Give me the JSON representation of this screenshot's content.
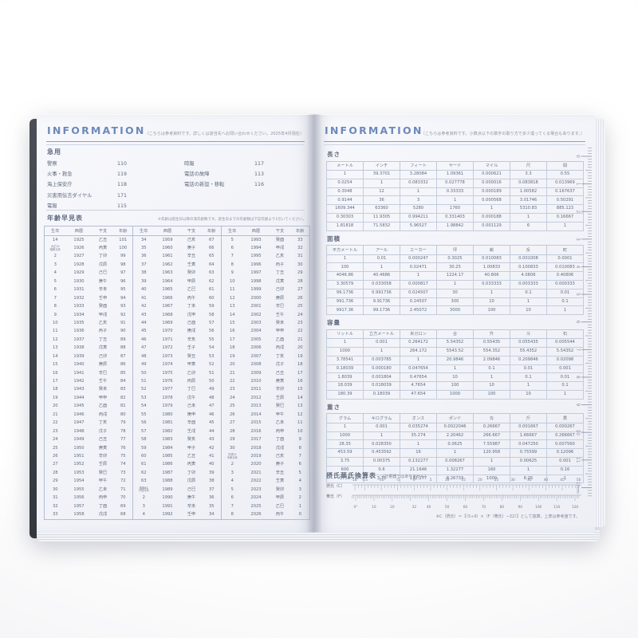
{
  "left_page": {
    "header": {
      "title": "INFORMATION",
      "note": "〔こちらは参考資料です。詳しくは該当先へお問い合わせください。2025年4月現在〕"
    },
    "emergency": {
      "title": "急用",
      "left_entries": [
        {
          "label": "警察",
          "number": "110"
        },
        {
          "label": "火事・救急",
          "number": "119"
        },
        {
          "label": "海上保安庁",
          "number": "118"
        },
        {
          "label": "災害用伝言ダイヤル",
          "number": "171"
        },
        {
          "label": "電報",
          "number": "115"
        }
      ],
      "right_entries": [
        {
          "label": "時報",
          "number": "117"
        },
        {
          "label": "電話の故障",
          "number": "113"
        },
        {
          "label": "電話の新設・移転",
          "number": "116"
        }
      ]
    },
    "age_table": {
      "title": "年齢早見表",
      "note": "※年齢は誕生日以降の満年齢数です。誕生日までの年齢数は下記年齢より1引いてください。",
      "column_headers": [
        "生年",
        "西暦",
        "干支",
        "年齢"
      ],
      "groups": [
        [
          [
            "14",
            "1925",
            "乙丑",
            "101"
          ],
          [
            "大正15\n昭和元年",
            "1926",
            "丙寅",
            "100"
          ],
          [
            "2",
            "1927",
            "丁卯",
            "99"
          ],
          [
            "3",
            "1928",
            "戊辰",
            "98"
          ],
          [
            "4",
            "1929",
            "己巳",
            "97"
          ],
          [
            "5",
            "1930",
            "庚午",
            "96"
          ],
          [
            "6",
            "1931",
            "辛未",
            "95"
          ],
          [
            "7",
            "1932",
            "壬申",
            "94"
          ],
          [
            "8",
            "1933",
            "癸酉",
            "93"
          ],
          [
            "9",
            "1934",
            "甲戌",
            "92"
          ],
          [
            "10",
            "1935",
            "乙亥",
            "91"
          ],
          [
            "11",
            "1936",
            "丙子",
            "90"
          ],
          [
            "12",
            "1937",
            "丁丑",
            "89"
          ],
          [
            "13",
            "1938",
            "戊寅",
            "88"
          ],
          [
            "14",
            "1939",
            "己卯",
            "87"
          ],
          [
            "15",
            "1940",
            "庚辰",
            "86"
          ],
          [
            "16",
            "1941",
            "辛巳",
            "85"
          ],
          [
            "17",
            "1942",
            "壬午",
            "84"
          ],
          [
            "18",
            "1943",
            "癸未",
            "83"
          ],
          [
            "19",
            "1944",
            "甲申",
            "82"
          ],
          [
            "20",
            "1945",
            "乙酉",
            "81"
          ],
          [
            "21",
            "1946",
            "丙戌",
            "80"
          ],
          [
            "22",
            "1947",
            "丁亥",
            "79"
          ],
          [
            "23",
            "1948",
            "戊子",
            "78"
          ],
          [
            "24",
            "1949",
            "己丑",
            "77"
          ],
          [
            "25",
            "1950",
            "庚寅",
            "76"
          ],
          [
            "26",
            "1951",
            "辛卯",
            "75"
          ],
          [
            "27",
            "1952",
            "壬辰",
            "74"
          ],
          [
            "28",
            "1953",
            "癸巳",
            "73"
          ],
          [
            "29",
            "1954",
            "甲午",
            "72"
          ],
          [
            "30",
            "1955",
            "乙未",
            "71"
          ],
          [
            "31",
            "1956",
            "丙申",
            "70"
          ],
          [
            "32",
            "1957",
            "丁酉",
            "69"
          ],
          [
            "33",
            "1958",
            "戊戌",
            "68"
          ]
        ],
        [
          [
            "34",
            "1959",
            "己亥",
            "67"
          ],
          [
            "35",
            "1960",
            "庚子",
            "66"
          ],
          [
            "36",
            "1961",
            "辛丑",
            "65"
          ],
          [
            "37",
            "1962",
            "壬寅",
            "64"
          ],
          [
            "38",
            "1963",
            "癸卯",
            "63"
          ],
          [
            "39",
            "1964",
            "甲辰",
            "62"
          ],
          [
            "40",
            "1965",
            "乙巳",
            "61"
          ],
          [
            "41",
            "1966",
            "丙午",
            "60"
          ],
          [
            "42",
            "1967",
            "丁未",
            "59"
          ],
          [
            "43",
            "1968",
            "戊申",
            "58"
          ],
          [
            "44",
            "1969",
            "己酉",
            "57"
          ],
          [
            "45",
            "1970",
            "庚戌",
            "56"
          ],
          [
            "46",
            "1971",
            "辛亥",
            "55"
          ],
          [
            "47",
            "1972",
            "壬子",
            "54"
          ],
          [
            "48",
            "1973",
            "癸丑",
            "53"
          ],
          [
            "49",
            "1974",
            "甲寅",
            "52"
          ],
          [
            "50",
            "1975",
            "乙卯",
            "51"
          ],
          [
            "51",
            "1976",
            "丙辰",
            "50"
          ],
          [
            "52",
            "1977",
            "丁巳",
            "49"
          ],
          [
            "53",
            "1978",
            "戊午",
            "48"
          ],
          [
            "54",
            "1979",
            "己未",
            "47"
          ],
          [
            "55",
            "1980",
            "庚申",
            "46"
          ],
          [
            "56",
            "1981",
            "辛酉",
            "45"
          ],
          [
            "57",
            "1982",
            "壬戌",
            "44"
          ],
          [
            "58",
            "1983",
            "癸亥",
            "43"
          ],
          [
            "59",
            "1984",
            "甲子",
            "42"
          ],
          [
            "60",
            "1985",
            "乙丑",
            "41"
          ],
          [
            "61",
            "1986",
            "丙寅",
            "40"
          ],
          [
            "62",
            "1987",
            "丁卯",
            "39"
          ],
          [
            "63",
            "1988",
            "戊辰",
            "38"
          ],
          [
            "昭和64\n平成元年",
            "1989",
            "己巳",
            "37"
          ],
          [
            "2",
            "1990",
            "庚午",
            "36"
          ],
          [
            "3",
            "1991",
            "辛未",
            "35"
          ],
          [
            "4",
            "1992",
            "壬申",
            "34"
          ]
        ],
        [
          [
            "5",
            "1993",
            "癸酉",
            "33"
          ],
          [
            "6",
            "1994",
            "甲戌",
            "32"
          ],
          [
            "7",
            "1995",
            "乙亥",
            "31"
          ],
          [
            "8",
            "1996",
            "丙子",
            "30"
          ],
          [
            "9",
            "1997",
            "丁丑",
            "29"
          ],
          [
            "10",
            "1998",
            "戊寅",
            "28"
          ],
          [
            "11",
            "1999",
            "己卯",
            "27"
          ],
          [
            "12",
            "2000",
            "庚辰",
            "26"
          ],
          [
            "13",
            "2001",
            "辛巳",
            "25"
          ],
          [
            "14",
            "2002",
            "壬午",
            "24"
          ],
          [
            "15",
            "2003",
            "癸未",
            "23"
          ],
          [
            "16",
            "2004",
            "甲申",
            "22"
          ],
          [
            "17",
            "2005",
            "乙酉",
            "21"
          ],
          [
            "18",
            "2006",
            "丙戌",
            "20"
          ],
          [
            "19",
            "2007",
            "丁亥",
            "19"
          ],
          [
            "20",
            "2008",
            "戊子",
            "18"
          ],
          [
            "21",
            "2009",
            "己丑",
            "17"
          ],
          [
            "22",
            "2010",
            "庚寅",
            "16"
          ],
          [
            "23",
            "2011",
            "辛卯",
            "15"
          ],
          [
            "24",
            "2012",
            "壬辰",
            "14"
          ],
          [
            "25",
            "2013",
            "癸巳",
            "13"
          ],
          [
            "26",
            "2014",
            "甲午",
            "12"
          ],
          [
            "27",
            "2015",
            "乙未",
            "11"
          ],
          [
            "28",
            "2016",
            "丙申",
            "10"
          ],
          [
            "29",
            "2017",
            "丁酉",
            "9"
          ],
          [
            "30",
            "2018",
            "戊戌",
            "8"
          ],
          [
            "平成31\n令和元年",
            "2019",
            "己亥",
            "7"
          ],
          [
            "2",
            "2020",
            "庚子",
            "6"
          ],
          [
            "3",
            "2021",
            "辛丑",
            "5"
          ],
          [
            "4",
            "2022",
            "壬寅",
            "4"
          ],
          [
            "5",
            "2023",
            "癸卯",
            "3"
          ],
          [
            "6",
            "2024",
            "甲辰",
            "2"
          ],
          [
            "7",
            "2025",
            "乙巳",
            "1"
          ],
          [
            "8",
            "2026",
            "丙午",
            "0"
          ]
        ]
      ]
    }
  },
  "right_page": {
    "header": {
      "title": "INFORMATION",
      "note": "〔こちらは参考資料です。小数点以下の数字の取り方で多少違ってくる場合もあります。〕"
    },
    "tables": [
      {
        "title": "長さ",
        "headers": [
          "メートル",
          "インチ",
          "フィート",
          "ヤード",
          "マイル",
          "尺",
          "間"
        ],
        "rows": [
          [
            "1",
            "39.3701",
            "3.28084",
            "1.09361",
            "0.000621",
            "3.3",
            "0.55"
          ],
          [
            "0.0254",
            "1",
            "0.083332",
            "0.027778",
            "0.000016",
            "0.083818",
            "0.013969"
          ],
          [
            "0.3048",
            "12",
            "1",
            "0.33333",
            "0.000189",
            "1.00582",
            "0.167637"
          ],
          [
            "0.9144",
            "36",
            "3",
            "1",
            "0.000568",
            "3.01746",
            "0.50291"
          ],
          [
            "1609.344",
            "63360",
            "5280",
            "1760",
            "1",
            "5310.83",
            "885.123"
          ],
          [
            "0.30303",
            "11.9305",
            "0.994211",
            "0.331403",
            "0.000188",
            "1",
            "0.16667"
          ],
          [
            "1.81818",
            "71.5832",
            "5.96527",
            "1.98842",
            "0.001129",
            "6",
            "1"
          ]
        ]
      },
      {
        "title": "面積",
        "headers": [
          "平方メートル",
          "アール",
          "エーカー",
          "坪",
          "畝",
          "反",
          "町"
        ],
        "rows": [
          [
            "1",
            "0.01",
            "0.000247",
            "0.3025",
            "0.010083",
            "0.001008",
            "0.0001"
          ],
          [
            "100",
            "1",
            "0.02471",
            "30.25",
            "1.00833",
            "0.100833",
            "0.010083"
          ],
          [
            "4046.86",
            "40.4686",
            "1",
            "1224.17",
            "40.806",
            "4.0806",
            "0.40806"
          ],
          [
            "3.30579",
            "0.033058",
            "0.000817",
            "1",
            "0.033333",
            "0.003333",
            "0.000333"
          ],
          [
            "99.1736",
            "0.991736",
            "0.024507",
            "30",
            "1",
            "0.1",
            "0.01"
          ],
          [
            "991.736",
            "9.91736",
            "0.24507",
            "300",
            "10",
            "1",
            "0.1"
          ],
          [
            "9917.36",
            "99.1736",
            "2.45072",
            "3000",
            "100",
            "10",
            "1"
          ]
        ]
      },
      {
        "title": "容量",
        "headers": [
          "リットル",
          "立方メートル",
          "米ガロン",
          "合",
          "升",
          "斗",
          "石"
        ],
        "rows": [
          [
            "1",
            "0.001",
            "0.264172",
            "5.54352",
            "0.55435",
            "0.055435",
            "0.005544"
          ],
          [
            "1000",
            "1",
            "264.172",
            "5543.52",
            "554.352",
            "55.4352",
            "5.54352"
          ],
          [
            "3.78541",
            "0.003785",
            "1",
            "20.9846",
            "2.09846",
            "0.209846",
            "0.02098"
          ],
          [
            "0.18039",
            "0.000180",
            "0.047654",
            "1",
            "0.1",
            "0.01",
            "0.001"
          ],
          [
            "1.8039",
            "0.001804",
            "0.47654",
            "10",
            "1",
            "0.1",
            "0.01"
          ],
          [
            "18.039",
            "0.018039",
            "4.7654",
            "100",
            "10",
            "1",
            "0.1"
          ],
          [
            "180.39",
            "0.18039",
            "47.654",
            "1000",
            "100",
            "10",
            "1"
          ]
        ]
      },
      {
        "title": "重さ",
        "headers": [
          "グラム",
          "キログラム",
          "オンス",
          "ポンド",
          "匁",
          "斤",
          "貫"
        ],
        "rows": [
          [
            "1",
            "0.001",
            "0.035274",
            "0.0022046",
            "0.26667",
            "0.001667",
            "0.000267"
          ],
          [
            "1000",
            "1",
            "35.274",
            "2.20462",
            "266.667",
            "1.66667",
            "0.266667"
          ],
          [
            "28.35",
            "0.028350",
            "1",
            "0.0625",
            "7.55987",
            "0.047250",
            "0.007560"
          ],
          [
            "453.59",
            "0.453592",
            "16",
            "1",
            "120.958",
            "0.75599",
            "0.12096"
          ],
          [
            "3.75",
            "0.00375",
            "0.132277",
            "0.008267",
            "1",
            "0.00625",
            "0.001"
          ],
          [
            "600",
            "0.6",
            "21.1646",
            "1.32277",
            "160",
            "1",
            "0.16"
          ],
          [
            "3750",
            "3.75",
            "132.277",
            "8.26733",
            "1000",
            "6.25",
            "1"
          ]
        ]
      }
    ],
    "temp_chart": {
      "title": "摂氏華氏換算表",
      "title_note": "（計量器ではありません）",
      "celsius_label": "摂氏（C）",
      "fahrenheit_label": "華氏（F）",
      "celsius_ticks": [
        "-18°",
        "-15",
        "-10",
        "-5",
        "0",
        "5",
        "10",
        "15",
        "20",
        "25",
        "30",
        "35",
        "40",
        "45",
        "50"
      ],
      "fahrenheit_ticks": [
        "0°",
        "10",
        "20",
        "32",
        "40",
        "50",
        "60",
        "70",
        "80",
        "90",
        "100",
        "110",
        "120"
      ],
      "note": "※C（摂氏）＝【（5÷9）×（F（華氏）−32）】として換算。上表は参考値です。"
    },
    "ruler": {
      "numbers": [
        "0",
        "1",
        "2",
        "3",
        "4",
        "5",
        "6",
        "7",
        "8",
        "9",
        "10",
        "11",
        "12cm"
      ]
    }
  }
}
